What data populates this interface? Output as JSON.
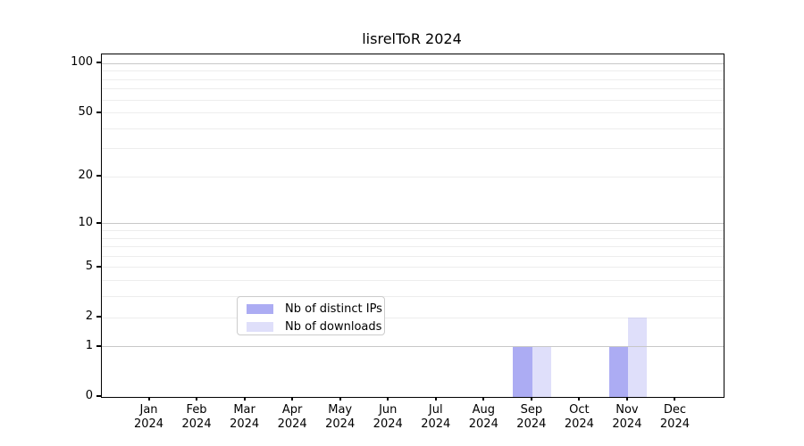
{
  "chart_data": {
    "type": "bar",
    "title": "lisrelToR 2024",
    "categories": [
      "Jan 2024",
      "Feb 2024",
      "Mar 2024",
      "Apr 2024",
      "May 2024",
      "Jun 2024",
      "Jul 2024",
      "Aug 2024",
      "Sep 2024",
      "Oct 2024",
      "Nov 2024",
      "Dec 2024"
    ],
    "series": [
      {
        "name": "Nb of distinct IPs",
        "color": "#acacf3",
        "alpha": 1,
        "values": [
          0,
          0,
          0,
          0,
          0,
          0,
          0,
          0,
          1,
          0,
          1,
          0
        ]
      },
      {
        "name": "Nb of downloads",
        "color": "#acacf3",
        "alpha": 0.38,
        "values": [
          0,
          0,
          0,
          0,
          0,
          0,
          0,
          0,
          1,
          0,
          2,
          0
        ]
      }
    ],
    "yscale": "log1p",
    "ylim": [
      0,
      114
    ],
    "yticks": [
      0,
      1,
      2,
      5,
      10,
      20,
      50,
      100
    ],
    "grid": {
      "minor_values": [
        2,
        3,
        4,
        5,
        6,
        7,
        8,
        9,
        20,
        30,
        40,
        50,
        60,
        70,
        80,
        90
      ],
      "major_values": [
        1,
        10,
        100
      ],
      "minor_color": "#ededed",
      "major_color": "#c8c8c8"
    },
    "legend": {
      "position": "lower center",
      "entries": [
        "Nb of distinct IPs",
        "Nb of downloads"
      ]
    }
  }
}
